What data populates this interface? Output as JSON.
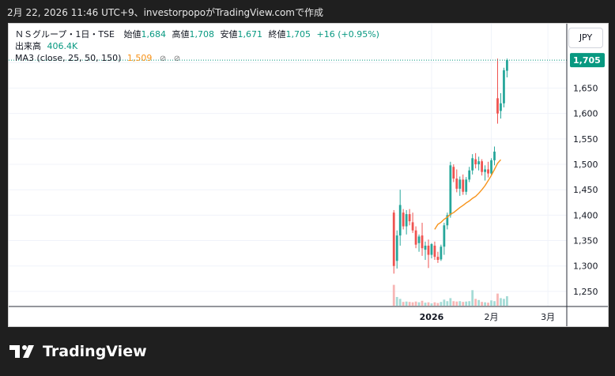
{
  "header": {
    "caption": "2月 22, 2026 11:46 UTC+9、investorpopoがTradingView.comで作成"
  },
  "legend": {
    "symbol": "ＮＳグループ・1日・TSE",
    "open_label": "始値",
    "open": "1,684",
    "high_label": "高値",
    "high": "1,708",
    "low_label": "安値",
    "low": "1,671",
    "close_label": "終値",
    "close": "1,705",
    "change": "+16 (+0.95%)",
    "volume_label": "出来高",
    "volume": "406.4K",
    "ma_label": "MA3 (close, 25, 50, 150)",
    "ma_value": "1,509",
    "ma_icons": [
      "eye-off-icon",
      "eye-off-icon"
    ]
  },
  "currency": "JPY",
  "price_tag": "1,705",
  "logo": {
    "text": "TradingView"
  },
  "colors": {
    "up": "#26a69a",
    "down": "#ef5350",
    "ma": "#f7931a",
    "vol_up": "#a5dbd6",
    "vol_down": "#f7b6b5",
    "price_tag_bg": "#089981"
  },
  "chart_data": {
    "type": "candlestick",
    "title": "ＮＳグループ・1日・TSE",
    "y_ticks": [
      1250,
      1300,
      1350,
      1400,
      1450,
      1500,
      1550,
      1600,
      1650,
      1700
    ],
    "y_tick_labels": [
      "1,250",
      "1,300",
      "1,350",
      "1,400",
      "1,450",
      "1,500",
      "1,550",
      "1,600",
      "1,650",
      "1,700"
    ],
    "ylim": [
      1225,
      1730
    ],
    "x_ticks": [
      {
        "label": "2026",
        "index": 12
      },
      {
        "label": "2月",
        "index": 31
      },
      {
        "label": "3月",
        "index": 49
      }
    ],
    "x_range": [
      -122.5,
      55
    ],
    "last_price": 1705,
    "candles": [
      {
        "o": 1405,
        "h": 1410,
        "l": 1285,
        "c": 1300,
        "v": 0.55
      },
      {
        "o": 1310,
        "h": 1370,
        "l": 1295,
        "c": 1360,
        "v": 0.23
      },
      {
        "o": 1360,
        "h": 1450,
        "l": 1340,
        "c": 1420,
        "v": 0.18
      },
      {
        "o": 1405,
        "h": 1412,
        "l": 1372,
        "c": 1378,
        "v": 0.1
      },
      {
        "o": 1378,
        "h": 1410,
        "l": 1362,
        "c": 1402,
        "v": 0.11
      },
      {
        "o": 1402,
        "h": 1412,
        "l": 1380,
        "c": 1388,
        "v": 0.1
      },
      {
        "o": 1386,
        "h": 1405,
        "l": 1365,
        "c": 1370,
        "v": 0.09
      },
      {
        "o": 1370,
        "h": 1378,
        "l": 1335,
        "c": 1342,
        "v": 0.11
      },
      {
        "o": 1345,
        "h": 1362,
        "l": 1328,
        "c": 1358,
        "v": 0.09
      },
      {
        "o": 1360,
        "h": 1385,
        "l": 1320,
        "c": 1335,
        "v": 0.13
      },
      {
        "o": 1332,
        "h": 1348,
        "l": 1312,
        "c": 1340,
        "v": 0.08
      },
      {
        "o": 1340,
        "h": 1352,
        "l": 1296,
        "c": 1322,
        "v": 0.09
      },
      {
        "o": 1322,
        "h": 1345,
        "l": 1315,
        "c": 1343,
        "v": 0.06
      },
      {
        "o": 1340,
        "h": 1348,
        "l": 1312,
        "c": 1318,
        "v": 0.09
      },
      {
        "o": 1318,
        "h": 1328,
        "l": 1306,
        "c": 1312,
        "v": 0.07
      },
      {
        "o": 1313,
        "h": 1342,
        "l": 1310,
        "c": 1338,
        "v": 0.1
      },
      {
        "o": 1338,
        "h": 1385,
        "l": 1322,
        "c": 1380,
        "v": 0.16
      },
      {
        "o": 1380,
        "h": 1405,
        "l": 1372,
        "c": 1400,
        "v": 0.12
      },
      {
        "o": 1400,
        "h": 1505,
        "l": 1395,
        "c": 1498,
        "v": 0.2
      },
      {
        "o": 1495,
        "h": 1500,
        "l": 1465,
        "c": 1472,
        "v": 0.12
      },
      {
        "o": 1472,
        "h": 1490,
        "l": 1445,
        "c": 1452,
        "v": 0.11
      },
      {
        "o": 1452,
        "h": 1476,
        "l": 1438,
        "c": 1470,
        "v": 0.12
      },
      {
        "o": 1470,
        "h": 1480,
        "l": 1440,
        "c": 1446,
        "v": 0.1
      },
      {
        "o": 1446,
        "h": 1475,
        "l": 1440,
        "c": 1470,
        "v": 0.11
      },
      {
        "o": 1470,
        "h": 1495,
        "l": 1465,
        "c": 1488,
        "v": 0.12
      },
      {
        "o": 1488,
        "h": 1520,
        "l": 1480,
        "c": 1512,
        "v": 0.41
      },
      {
        "o": 1510,
        "h": 1522,
        "l": 1492,
        "c": 1500,
        "v": 0.18
      },
      {
        "o": 1500,
        "h": 1515,
        "l": 1488,
        "c": 1506,
        "v": 0.15
      },
      {
        "o": 1506,
        "h": 1510,
        "l": 1478,
        "c": 1485,
        "v": 0.1
      },
      {
        "o": 1485,
        "h": 1498,
        "l": 1468,
        "c": 1490,
        "v": 0.09
      },
      {
        "o": 1490,
        "h": 1505,
        "l": 1474,
        "c": 1482,
        "v": 0.08
      },
      {
        "o": 1482,
        "h": 1512,
        "l": 1478,
        "c": 1508,
        "v": 0.14
      },
      {
        "o": 1508,
        "h": 1535,
        "l": 1498,
        "c": 1525,
        "v": 0.12
      },
      {
        "o": 1630,
        "h": 1708,
        "l": 1580,
        "c": 1600,
        "v": 0.32
      },
      {
        "o": 1605,
        "h": 1640,
        "l": 1590,
        "c": 1620,
        "v": 0.2
      },
      {
        "o": 1620,
        "h": 1690,
        "l": 1612,
        "c": 1685,
        "v": 0.18
      },
      {
        "o": 1684,
        "h": 1708,
        "l": 1671,
        "c": 1705,
        "v": 0.25
      }
    ],
    "ma": {
      "name": "MA3 (close, 25, 50, 150)",
      "start_index": 13,
      "values": [
        1372,
        1382,
        1386,
        1392,
        1396,
        1402,
        1405,
        1410,
        1415,
        1419,
        1424,
        1428,
        1433,
        1437,
        1443,
        1450,
        1458,
        1468,
        1478,
        1490,
        1502,
        1509
      ]
    }
  }
}
